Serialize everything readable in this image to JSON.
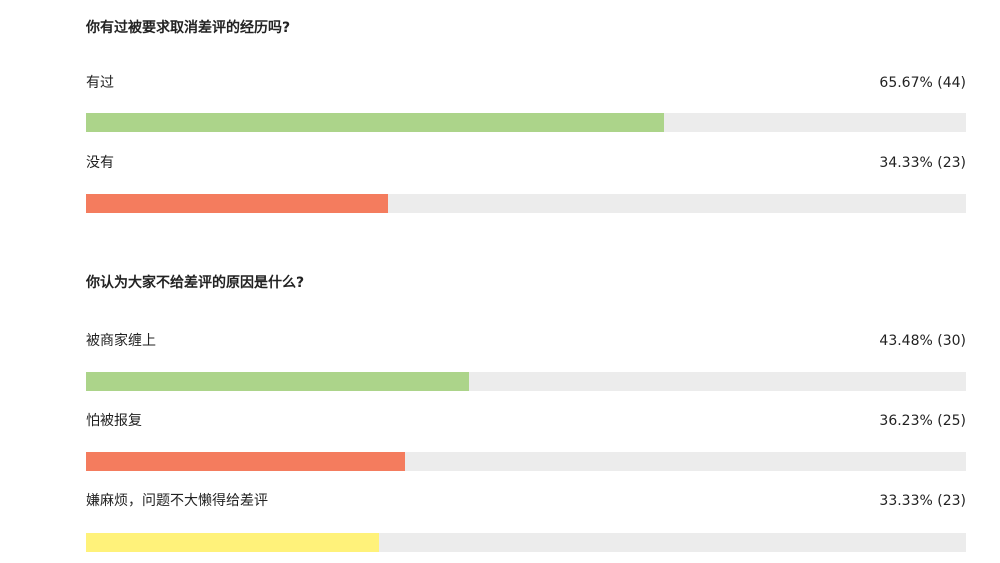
{
  "questions": [
    {
      "title": "你有过被要求取消差评的经历吗?",
      "options": [
        {
          "label": "有过",
          "stat": "65.67% (44)",
          "percent": 65.67,
          "color": "#acd48a"
        },
        {
          "label": "没有",
          "stat": "34.33% (23)",
          "percent": 34.33,
          "color": "#f47c5e"
        }
      ]
    },
    {
      "title": "你认为大家不给差评的原因是什么?",
      "options": [
        {
          "label": "被商家缠上",
          "stat": "43.48% (30)",
          "percent": 43.48,
          "color": "#acd48a"
        },
        {
          "label": "怕被报复",
          "stat": "36.23% (25)",
          "percent": 36.23,
          "color": "#f47c5e"
        },
        {
          "label": "嫌麻烦，问题不大懒得给差评",
          "stat": "33.33% (23)",
          "percent": 33.33,
          "color": "#fff27a"
        }
      ]
    }
  ]
}
